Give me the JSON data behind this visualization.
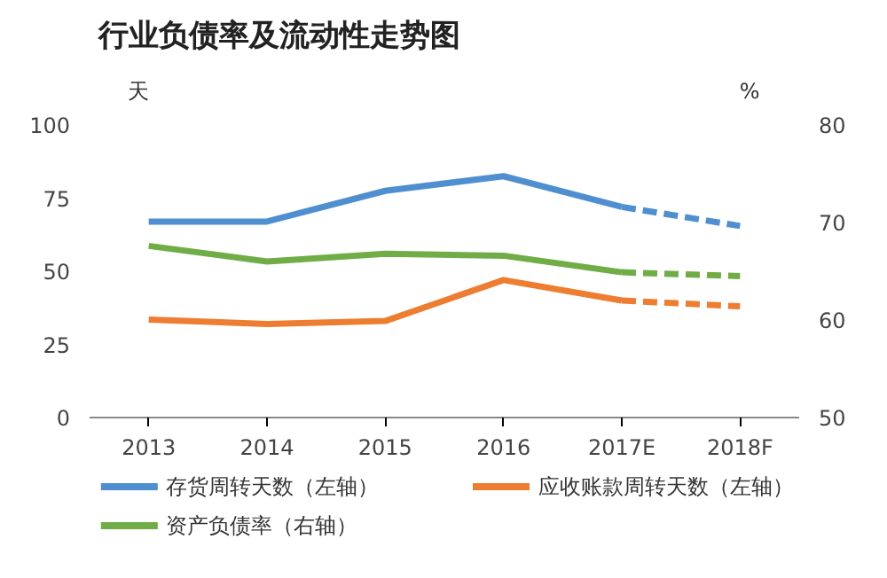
{
  "chart_data": {
    "type": "line",
    "title": "行业负债率及流动性走势图",
    "ylabel": "天",
    "y2label": "%",
    "categories": [
      "2013",
      "2014",
      "2015",
      "2016",
      "2017E",
      "2018F"
    ],
    "ylim": [
      0,
      100
    ],
    "yticks": [
      0,
      25,
      50,
      75,
      100
    ],
    "y2lim": [
      50,
      80
    ],
    "y2ticks": [
      50,
      60,
      70,
      80
    ],
    "grid": false,
    "legend": "bottom",
    "marker": "none",
    "series": [
      {
        "name": "存货周转天数（左轴）",
        "color": "#4f8fcf",
        "values": [
          67,
          67,
          77.5,
          82.5,
          72,
          null
        ],
        "line_style": "solid"
      },
      {
        "color": "#4f8fcf",
        "values": [
          null,
          null,
          null,
          null,
          72,
          65.5
        ],
        "line_style": "dashed"
      },
      {
        "name": "应收账款周转天数（左轴）",
        "color": "#ed7d31",
        "values": [
          33.5,
          32,
          33,
          47,
          40,
          null
        ],
        "line_style": "solid"
      },
      {
        "color": "#ed7d31",
        "values": [
          null,
          null,
          null,
          null,
          40,
          38
        ],
        "line_style": "dashed"
      },
      {
        "name": "资产负债率（右轴）",
        "color": "#70ad47",
        "values": [
          67.6,
          66,
          66.8,
          66.6,
          64.9,
          null
        ],
        "line_style": "solid",
        "axis": "y2"
      },
      {
        "color": "#70ad47",
        "values": [
          null,
          null,
          null,
          null,
          64.9,
          64.5
        ],
        "line_style": "dashed",
        "axis": "y2"
      }
    ]
  }
}
